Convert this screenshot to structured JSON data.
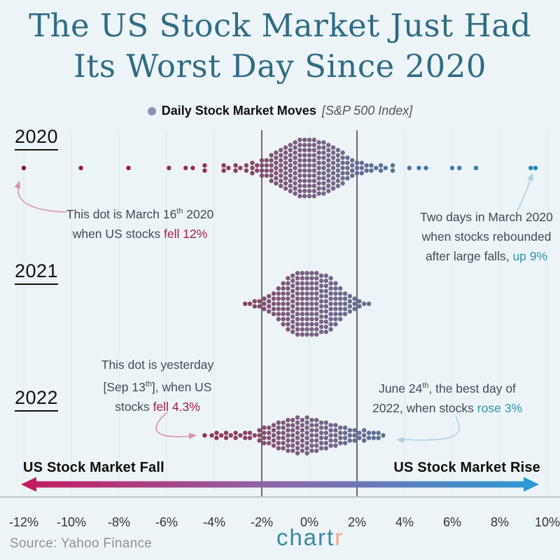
{
  "title": {
    "line1": "The US Stock Market Just Had",
    "line2": "Its Worst Day Since 2020"
  },
  "legend": {
    "label": "Daily Stock Market Moves",
    "detail": "[S&P 500 Index]"
  },
  "palette": {
    "background": "#edf4f7",
    "title_teal": "#2f6c84",
    "fall_text": "#a12046",
    "rise_text": "#2e93ae",
    "pink_arrow": "#d893ac",
    "blue_arrow": "#a9d2e2",
    "legend_dot": "#8795b4",
    "gradient_left": "#c6195c",
    "gradient_mid": "#8a68a8",
    "gradient_right": "#2a9ad4",
    "reference_line": "#4a4a4a",
    "grid_faint": "#e2ebf0",
    "logo_teal": "#3a8aa0",
    "logo_accent": "#f0a982"
  },
  "axis": {
    "fall_label": "US Stock Market Fall",
    "rise_label": "US Stock Market Rise",
    "ticks": [
      "-12%",
      "-10%",
      "-8%",
      "-6%",
      "-4%",
      "-2%",
      "0%",
      "2%",
      "4%",
      "6%",
      "8%",
      "10%"
    ]
  },
  "source": "Source: Yahoo Finance",
  "logo": {
    "main": "chart",
    "accent": "r"
  },
  "annotations": [
    {
      "id": "march16",
      "lines": [
        [
          {
            "t": "This dot is March 16"
          },
          {
            "t": "th",
            "sup": true
          },
          {
            "t": " 2020"
          }
        ],
        [
          {
            "t": "when US stocks "
          },
          {
            "t": "fell 12%",
            "color": "fall"
          }
        ]
      ]
    },
    {
      "id": "rebound",
      "lines": [
        [
          {
            "t": "Two days in March 2020"
          }
        ],
        [
          {
            "t": "when stocks rebounded"
          }
        ],
        [
          {
            "t": "after large falls, "
          },
          {
            "t": "up 9%",
            "color": "rise"
          }
        ]
      ]
    },
    {
      "id": "yesterday",
      "lines": [
        [
          {
            "t": "This dot is yesterday"
          }
        ],
        [
          {
            "t": "[Sep 13"
          },
          {
            "t": "th",
            "sup": true
          },
          {
            "t": "], when US"
          }
        ],
        [
          {
            "t": "stocks "
          },
          {
            "t": "fell 4.3%",
            "color": "fall"
          }
        ]
      ]
    },
    {
      "id": "june24",
      "lines": [
        [
          {
            "t": "June 24"
          },
          {
            "t": "th",
            "sup": true
          },
          {
            "t": ", the best day of"
          }
        ],
        [
          {
            "t": "2022, when stocks "
          },
          {
            "t": "rose 3%",
            "color": "rise"
          }
        ]
      ]
    }
  ],
  "chart_data": {
    "type": "beeswarm",
    "title": "Daily Stock Market Moves [S&P 500 Index]",
    "unit": "daily percent move",
    "x_range": [
      -12,
      10
    ],
    "tick_step": 2,
    "reference_lines": [
      -2,
      2
    ],
    "rows": [
      {
        "year": "2020",
        "bins": [
          [
            -12,
            1
          ],
          [
            -9.6,
            1
          ],
          [
            -7.6,
            1
          ],
          [
            -5.9,
            1
          ],
          [
            -5.2,
            1
          ],
          [
            -4.9,
            1
          ],
          [
            -4.4,
            2
          ],
          [
            -3.6,
            2
          ],
          [
            -3.4,
            1
          ],
          [
            -3.1,
            2
          ],
          [
            -2.9,
            1
          ],
          [
            -2.65,
            2
          ],
          [
            -2.4,
            3
          ],
          [
            -2.2,
            2
          ],
          [
            -2.0,
            4
          ],
          [
            -1.8,
            4
          ],
          [
            -1.6,
            6
          ],
          [
            -1.4,
            7
          ],
          [
            -1.2,
            8
          ],
          [
            -1.0,
            9
          ],
          [
            -0.8,
            10
          ],
          [
            -0.6,
            11
          ],
          [
            -0.4,
            12
          ],
          [
            -0.2,
            12
          ],
          [
            0,
            12
          ],
          [
            0.2,
            12
          ],
          [
            0.4,
            11
          ],
          [
            0.6,
            11
          ],
          [
            0.8,
            10
          ],
          [
            1.0,
            9
          ],
          [
            1.2,
            8
          ],
          [
            1.4,
            7
          ],
          [
            1.6,
            5
          ],
          [
            1.8,
            4
          ],
          [
            2.0,
            3
          ],
          [
            2.2,
            3
          ],
          [
            2.4,
            2
          ],
          [
            2.6,
            2
          ],
          [
            2.8,
            1
          ],
          [
            3.0,
            2
          ],
          [
            3.2,
            1
          ],
          [
            3.5,
            2
          ],
          [
            4.2,
            1
          ],
          [
            4.6,
            1
          ],
          [
            4.9,
            1
          ],
          [
            6.0,
            1
          ],
          [
            6.3,
            1
          ],
          [
            7.0,
            1
          ],
          [
            9.3,
            1
          ],
          [
            9.5,
            1
          ]
        ]
      },
      {
        "year": "2021",
        "bins": [
          [
            -2.7,
            1
          ],
          [
            -2.5,
            1
          ],
          [
            -2.3,
            2
          ],
          [
            -2.1,
            2
          ],
          [
            -1.9,
            3
          ],
          [
            -1.7,
            4
          ],
          [
            -1.5,
            5
          ],
          [
            -1.3,
            7
          ],
          [
            -1.1,
            9
          ],
          [
            -0.9,
            11
          ],
          [
            -0.7,
            12
          ],
          [
            -0.5,
            13
          ],
          [
            -0.3,
            13
          ],
          [
            -0.1,
            13
          ],
          [
            0.1,
            13
          ],
          [
            0.3,
            13
          ],
          [
            0.5,
            12
          ],
          [
            0.7,
            12
          ],
          [
            0.9,
            11
          ],
          [
            1.1,
            9
          ],
          [
            1.3,
            7
          ],
          [
            1.5,
            5
          ],
          [
            1.7,
            4
          ],
          [
            1.9,
            3
          ],
          [
            2.1,
            2
          ],
          [
            2.3,
            1
          ],
          [
            2.5,
            1
          ]
        ]
      },
      {
        "year": "2022",
        "bins": [
          [
            -4.4,
            1
          ],
          [
            -4.1,
            1
          ],
          [
            -3.9,
            2
          ],
          [
            -3.7,
            1
          ],
          [
            -3.5,
            2
          ],
          [
            -3.3,
            1
          ],
          [
            -3.1,
            2
          ],
          [
            -2.9,
            1
          ],
          [
            -2.7,
            2
          ],
          [
            -2.5,
            2
          ],
          [
            -2.3,
            1
          ],
          [
            -2.1,
            3
          ],
          [
            -1.9,
            4
          ],
          [
            -1.7,
            4
          ],
          [
            -1.5,
            5
          ],
          [
            -1.3,
            6
          ],
          [
            -1.1,
            6
          ],
          [
            -0.9,
            7
          ],
          [
            -0.7,
            7
          ],
          [
            -0.5,
            8
          ],
          [
            -0.3,
            7
          ],
          [
            -0.1,
            8
          ],
          [
            0.1,
            7
          ],
          [
            0.3,
            7
          ],
          [
            0.5,
            6
          ],
          [
            0.7,
            6
          ],
          [
            0.9,
            5
          ],
          [
            1.1,
            5
          ],
          [
            1.3,
            4
          ],
          [
            1.5,
            4
          ],
          [
            1.7,
            3
          ],
          [
            1.9,
            3
          ],
          [
            2.1,
            2
          ],
          [
            2.3,
            3
          ],
          [
            2.5,
            2
          ],
          [
            2.7,
            2
          ],
          [
            2.9,
            2
          ],
          [
            3.1,
            1
          ]
        ]
      }
    ],
    "highlights": [
      {
        "year": "2020",
        "value": -12,
        "label": "March 16th 2020, US stocks fell 12%"
      },
      {
        "year": "2020",
        "value": 9,
        "label": "Two days in March 2020, rebounded up 9%"
      },
      {
        "year": "2022",
        "value": -4.3,
        "label": "Yesterday [Sep 13th], stocks fell 4.3%"
      },
      {
        "year": "2022",
        "value": 3,
        "label": "June 24th, best day of 2022, rose 3%"
      }
    ],
    "color_stops": [
      [
        -12,
        "#8c1133"
      ],
      [
        -7,
        "#96224b"
      ],
      [
        -4,
        "#93355c"
      ],
      [
        -2.5,
        "#8a4568"
      ],
      [
        -1.2,
        "#7e5878"
      ],
      [
        0,
        "#7a6183"
      ],
      [
        1.2,
        "#71688c"
      ],
      [
        2.2,
        "#636d95"
      ],
      [
        3.5,
        "#53739e"
      ],
      [
        5,
        "#4079a8"
      ],
      [
        6.5,
        "#3380ad"
      ],
      [
        8,
        "#2486b6"
      ],
      [
        9.5,
        "#1d89bb"
      ]
    ],
    "legend_position": "top-center",
    "grid": "faint vertical lines at each 2% tick"
  }
}
